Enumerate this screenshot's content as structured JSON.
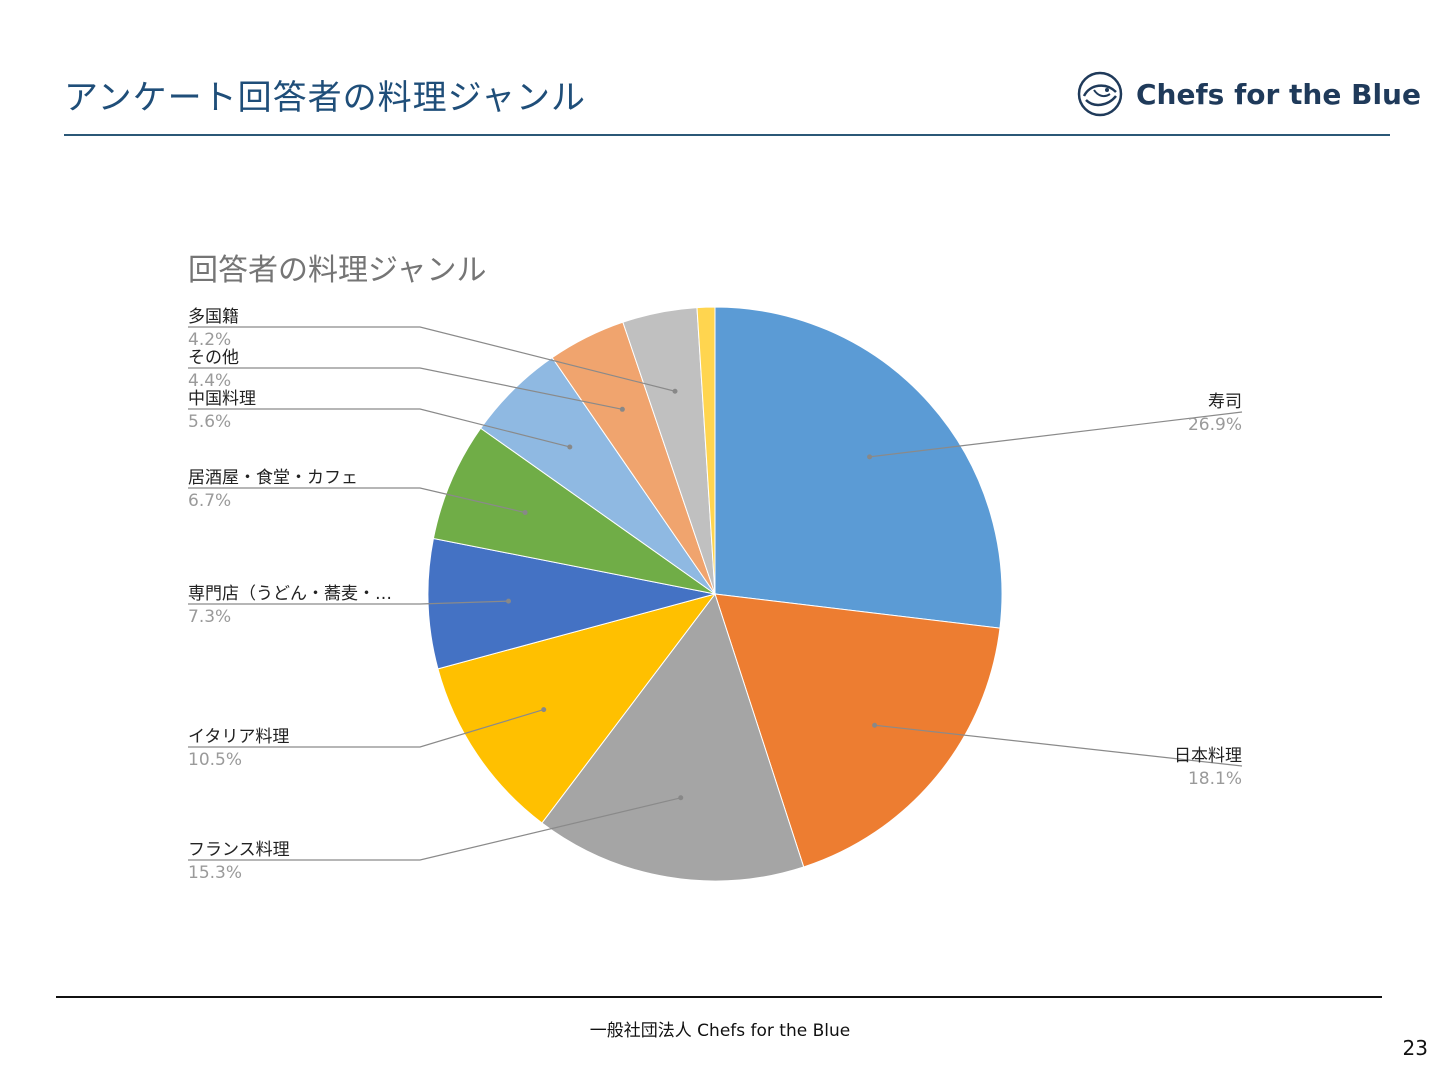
{
  "header": {
    "title": "アンケート回答者の料理ジャンル",
    "brand_name": "Chefs for the Blue",
    "brand_color": "#1f3a5a"
  },
  "footer": {
    "organization": "一般社団法人 Chefs for the Blue",
    "page_number": "23"
  },
  "chart_data": {
    "type": "pie",
    "title": "回答者の料理ジャンル",
    "slices": [
      {
        "label": "寿司",
        "value": 26.9,
        "display": "26.9%",
        "color": "#5b9bd5"
      },
      {
        "label": "日本料理",
        "value": 18.1,
        "display": "18.1%",
        "color": "#ed7d31"
      },
      {
        "label": "フランス料理",
        "value": 15.3,
        "display": "15.3%",
        "color": "#a5a5a5"
      },
      {
        "label": "イタリア料理",
        "value": 10.5,
        "display": "10.5%",
        "color": "#ffc000"
      },
      {
        "label": "専門店（うどん・蕎麦・…",
        "value": 7.3,
        "display": "7.3%",
        "color": "#4472c4"
      },
      {
        "label": "居酒屋・食堂・カフェ",
        "value": 6.7,
        "display": "6.7%",
        "color": "#70ad47"
      },
      {
        "label": "中国料理",
        "value": 5.6,
        "display": "5.6%",
        "color": "#8fb9e2"
      },
      {
        "label": "その他",
        "value": 4.4,
        "display": "4.4%",
        "color": "#f0a46e"
      },
      {
        "label": "多国籍",
        "value": 4.2,
        "display": "4.2%",
        "color": "#c0c0c0"
      },
      {
        "label": "",
        "value": 1.0,
        "display": "",
        "color": "#ffd54f"
      }
    ],
    "legend": "none"
  }
}
